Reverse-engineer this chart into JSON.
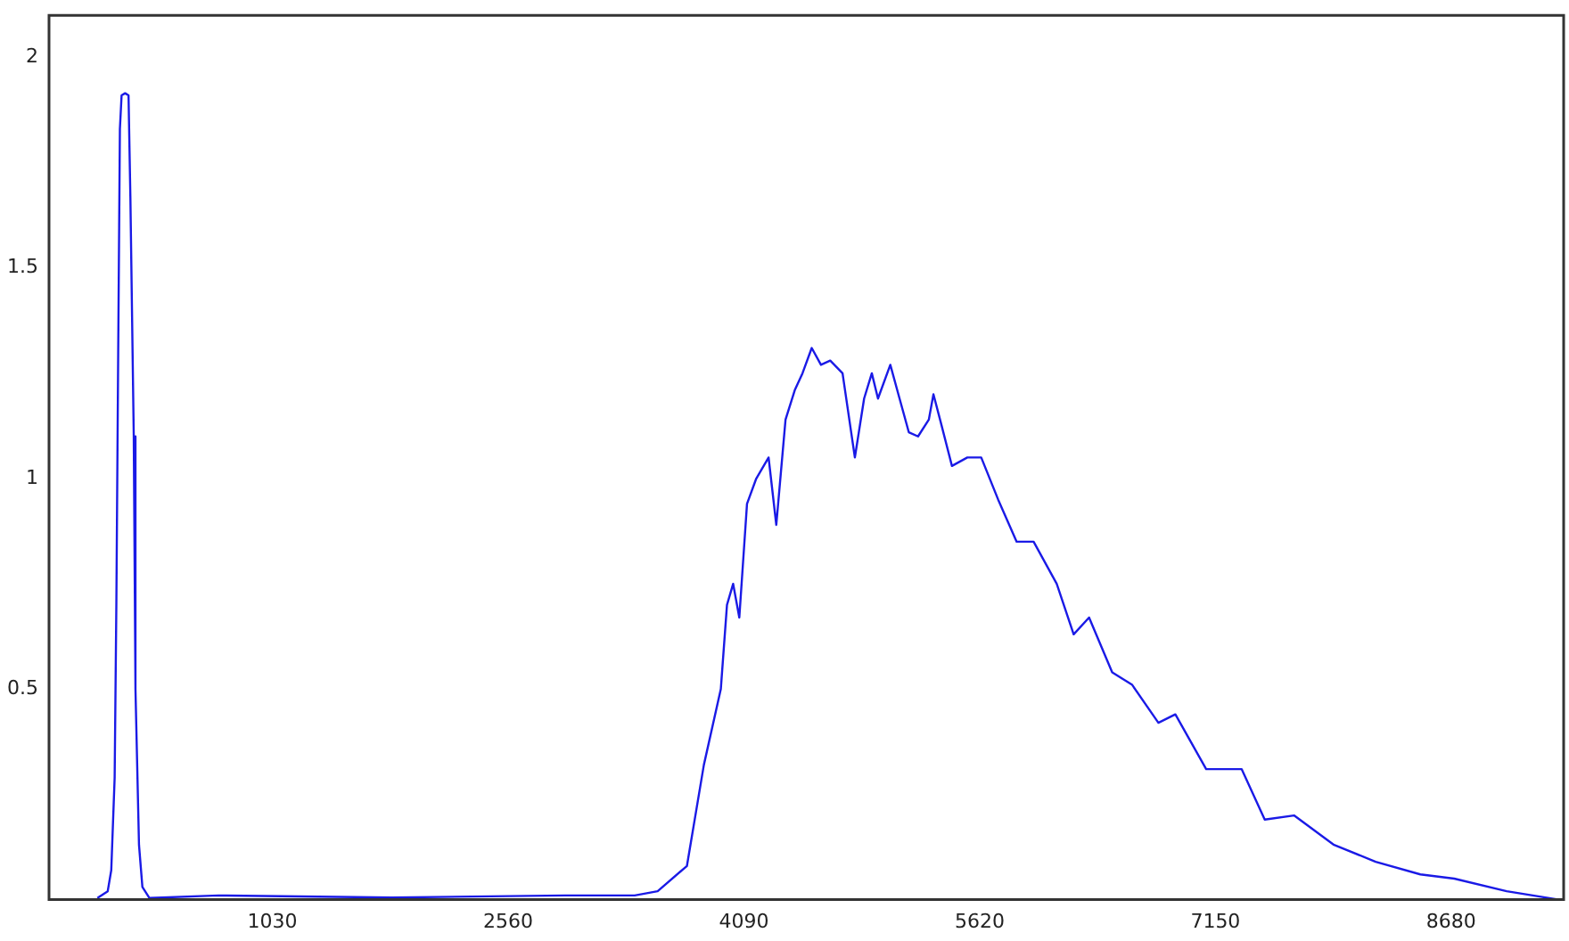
{
  "chart_data": {
    "type": "line",
    "x": [
      -106,
      -39,
      -16,
      6,
      17,
      29,
      40,
      51,
      74,
      96,
      108,
      130,
      141,
      164,
      186,
      231,
      681,
      1806,
      2931,
      3381,
      3530,
      3720,
      3830,
      3940,
      3980,
      4020,
      4060,
      4110,
      4170,
      4250,
      4300,
      4360,
      4420,
      4470,
      4530,
      4590,
      4650,
      4730,
      4810,
      4870,
      4920,
      4960,
      5040,
      5100,
      5160,
      5220,
      5290,
      5320,
      5370,
      5440,
      5540,
      5630,
      5740,
      5860,
      5970,
      6120,
      6230,
      6330,
      6480,
      6610,
      6780,
      6890,
      7090,
      7320,
      7470,
      7660,
      7920,
      8190,
      8480,
      8700,
      9040,
      9380
    ],
    "series": [
      {
        "color": "#1a1ae6",
        "values": [
          0.004,
          0.02,
          0.07,
          0.29,
          0.7,
          1.3,
          1.83,
          1.91,
          1.915,
          1.91,
          1.67,
          1.1,
          0.5,
          0.13,
          0.03,
          0.004,
          0.01,
          0.005,
          0.01,
          0.01,
          0.02,
          0.08,
          0.32,
          0.5,
          0.7,
          0.75,
          0.67,
          0.94,
          1.0,
          1.05,
          0.89,
          1.14,
          1.21,
          1.25,
          1.31,
          1.27,
          1.28,
          1.25,
          1.05,
          1.19,
          1.25,
          1.19,
          1.27,
          1.19,
          1.11,
          1.1,
          1.14,
          1.2,
          1.13,
          1.03,
          1.05,
          1.05,
          0.95,
          0.85,
          0.85,
          0.75,
          0.63,
          0.67,
          0.54,
          0.51,
          0.42,
          0.44,
          0.31,
          0.31,
          0.19,
          0.2,
          0.13,
          0.09,
          0.06,
          0.05,
          0.02,
          0.0
        ]
      }
    ],
    "xlim": [
      -420,
      9410
    ],
    "xticks": [
      1030,
      2560,
      4090,
      5620,
      7150,
      8680
    ],
    "ylim": [
      0,
      2.1
    ],
    "yticks": [
      0.5,
      1,
      1.5,
      2
    ],
    "grid": false,
    "legend": false,
    "marker": "none",
    "line_style": "solid"
  }
}
